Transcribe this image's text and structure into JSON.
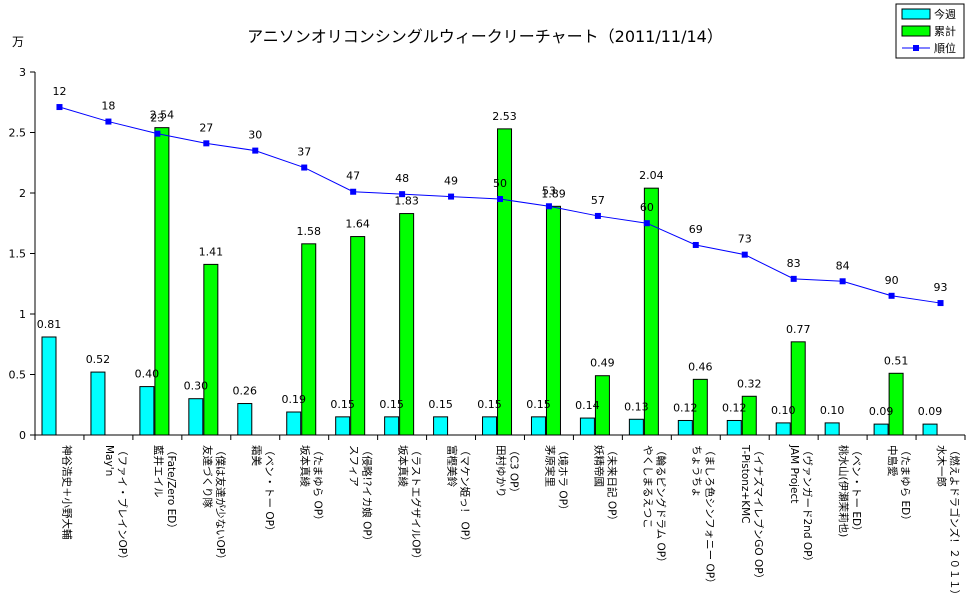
{
  "chart_data": {
    "type": "bar",
    "title": "アニソンオリコンシングルウィークリーチャート（2011/11/14）",
    "ylabel": "万",
    "ylim": [
      0,
      3
    ],
    "yticks": [
      "0",
      "0.5",
      "1",
      "1.5",
      "2",
      "2.5",
      "3"
    ],
    "grid": false,
    "legend_position": "top-right",
    "categories": [
      [
        "神谷浩史＋小野大輔"
      ],
      [
        "May'n",
        "（ファイ・ブレインOP）"
      ],
      [
        "藍井エイル",
        "（Fate/Zero ED）"
      ],
      [
        "友達づくり隊",
        "（僕は友達が少ないOP）"
      ],
      [
        "霜美",
        "（ベン・トー OP）"
      ],
      [
        "坂本真綾",
        "（たまゆら OP）"
      ],
      [
        "スフィア",
        "（侵略!?イカ娘 OP）"
      ],
      [
        "坂本真綾",
        "（ラストエグザイルOP）"
      ],
      [
        "富樫美鈴",
        "（マケン姫っ！ OP）"
      ],
      [
        "田村ゆかり",
        "（C3 OP）"
      ],
      [
        "茅原実里",
        "（境ホラ OP）"
      ],
      [
        "妖精帝國",
        "（未来日記 OP）"
      ],
      [
        "やくしまるえつこ",
        "（輪るピングドラム OP）"
      ],
      [
        "ちょうちょ",
        "（ましろ色シンフォニー OP）"
      ],
      [
        "T-Pistonz+KMC",
        "（イナズマイレブンGO OP）"
      ],
      [
        "JAM Project",
        "（ヴァンガード2nd OP）"
      ],
      [
        "桃水山(伊瀬茉莉也)",
        "（ベン・トー ED）"
      ],
      [
        "中島愛",
        "（たまゆら ED）"
      ],
      [
        "水木一郎",
        "（燃えよドラゴンズ！２０１１）"
      ]
    ],
    "series": [
      {
        "name": "今週",
        "color": "#00FFFF",
        "values": [
          0.81,
          0.52,
          0.4,
          0.3,
          0.26,
          0.19,
          0.15,
          0.15,
          0.15,
          0.15,
          0.15,
          0.14,
          0.13,
          0.12,
          0.12,
          0.1,
          0.1,
          0.09,
          0.09
        ],
        "labels": [
          "0.81",
          "0.52",
          "0.40",
          "0.30",
          "0.26",
          "0.19",
          "0.15",
          "0.15",
          "0.15",
          "0.15",
          "0.15",
          "0.14",
          "0.13",
          "0.12",
          "0.12",
          "0.10",
          "0.10",
          "0.09",
          "0.09"
        ]
      },
      {
        "name": "累計",
        "color": "#00FF00",
        "values": [
          null,
          null,
          2.54,
          1.41,
          null,
          1.58,
          1.64,
          1.83,
          null,
          2.53,
          1.89,
          0.49,
          2.04,
          0.46,
          0.32,
          0.77,
          null,
          0.51,
          null
        ],
        "labels": [
          null,
          null,
          "2.54",
          "1.41",
          null,
          "1.58",
          "1.64",
          "1.83",
          null,
          "2.53",
          "1.89",
          "0.49",
          "2.04",
          "0.46",
          "0.32",
          "0.77",
          null,
          "0.51",
          null
        ]
      },
      {
        "name": "順位",
        "type": "line",
        "color": "#0000FF",
        "ranks": [
          12,
          18,
          23,
          27,
          30,
          37,
          47,
          48,
          49,
          50,
          53,
          57,
          60,
          69,
          73,
          83,
          84,
          90,
          93
        ],
        "labels": [
          "12",
          "18",
          "23",
          "27",
          "30",
          "37",
          "47",
          "48",
          "49",
          "50",
          "53",
          "57",
          "60",
          "69",
          "73",
          "83",
          "84",
          "90",
          "93"
        ]
      }
    ]
  }
}
